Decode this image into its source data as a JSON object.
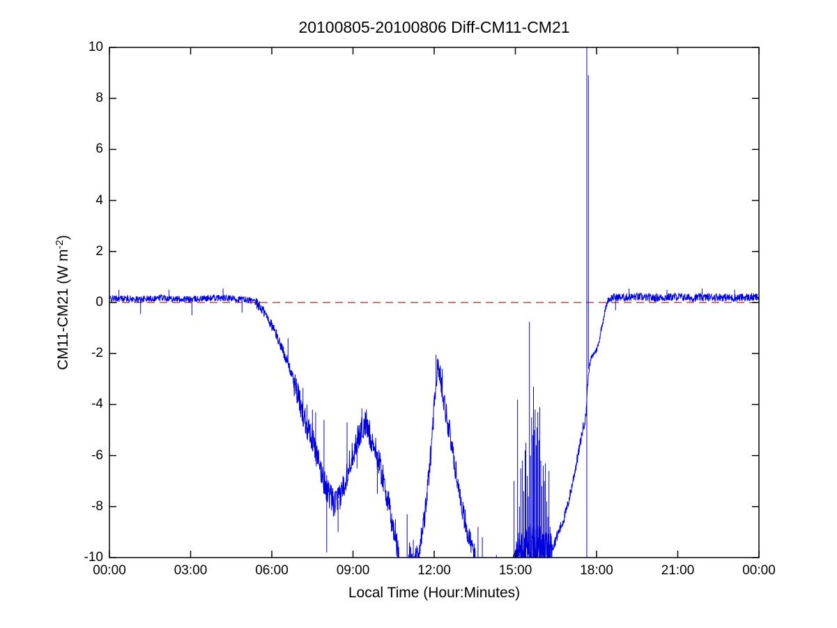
{
  "figure": {
    "background": "#ffffff"
  },
  "chart_data": {
    "type": "line",
    "title": "20100805-20100806 Diff-CM11-CM21",
    "xlabel": "Local Time (Hour:Minutes)",
    "ylabel": "CM11-CM21 (W m^-2)",
    "ylabel_parts": {
      "pre": "CM11-CM21 (W m",
      "sup": "-2",
      "post": ")"
    },
    "xlim": [
      0,
      24
    ],
    "ylim": [
      -10,
      10
    ],
    "x_tick_hours": [
      0,
      3,
      6,
      9,
      12,
      15,
      18,
      21,
      24
    ],
    "x_tick_labels": [
      "00:00",
      "03:00",
      "06:00",
      "09:00",
      "12:00",
      "15:00",
      "18:00",
      "21:00",
      "00:00"
    ],
    "y_tick_values": [
      -10,
      -8,
      -6,
      -4,
      -2,
      0,
      2,
      4,
      6,
      8,
      10
    ],
    "y_tick_labels": [
      "-10",
      "-8",
      "-6",
      "-4",
      "-2",
      "0",
      "2",
      "4",
      "6",
      "8",
      "10"
    ],
    "grid": false,
    "legend": "none",
    "axis_color": "#000000",
    "series": [
      {
        "name": "CM11-CM21 difference",
        "color": "#0000dd",
        "style": "solid",
        "description": "Noisy 1-min pyranometer difference trace; flat near +0.2 W/m2 at night, dips to -10 and below during daylight, cloud spikes 15:00-16:20, large +10/-10 spike near 17:40, returns to +0.2 after 18:30.",
        "envelope_points": [
          [
            0,
            0.15
          ],
          [
            0.5,
            0.16
          ],
          [
            1,
            0.12
          ],
          [
            1.5,
            0.15
          ],
          [
            2,
            0.2
          ],
          [
            2.5,
            0.14
          ],
          [
            3,
            0.12
          ],
          [
            3.5,
            0.16
          ],
          [
            4,
            0.18
          ],
          [
            4.5,
            0.15
          ],
          [
            5,
            0.12
          ],
          [
            5.3,
            0.05
          ],
          [
            5.5,
            -0.1
          ],
          [
            5.7,
            -0.35
          ],
          [
            5.9,
            -0.7
          ],
          [
            6.1,
            -1.1
          ],
          [
            6.3,
            -1.6
          ],
          [
            6.5,
            -2.1
          ],
          [
            6.7,
            -2.7
          ],
          [
            6.9,
            -3.4
          ],
          [
            7.1,
            -4.2
          ],
          [
            7.3,
            -4.8
          ],
          [
            7.5,
            -5.3
          ],
          [
            7.7,
            -6.2
          ],
          [
            7.9,
            -6.9
          ],
          [
            8.1,
            -7.5
          ],
          [
            8.3,
            -7.9
          ],
          [
            8.5,
            -7.7
          ],
          [
            8.7,
            -7.0
          ],
          [
            8.9,
            -6.2
          ],
          [
            9.1,
            -5.6
          ],
          [
            9.3,
            -5.0
          ],
          [
            9.45,
            -4.8
          ],
          [
            9.6,
            -5.1
          ],
          [
            9.8,
            -5.7
          ],
          [
            10,
            -6.4
          ],
          [
            10.2,
            -7.3
          ],
          [
            10.4,
            -8.4
          ],
          [
            10.6,
            -9.4
          ],
          [
            10.75,
            -10.3
          ],
          [
            11,
            -10.4
          ],
          [
            11.1,
            -9.7
          ],
          [
            11.2,
            -10.3
          ],
          [
            11.4,
            -9.9
          ],
          [
            11.6,
            -8.8
          ],
          [
            11.8,
            -6.9
          ],
          [
            11.95,
            -4.8
          ],
          [
            12.05,
            -3.2
          ],
          [
            12.15,
            -2.5
          ],
          [
            12.25,
            -3.0
          ],
          [
            12.4,
            -4.1
          ],
          [
            12.6,
            -5.3
          ],
          [
            12.8,
            -6.6
          ],
          [
            13,
            -7.8
          ],
          [
            13.2,
            -8.9
          ],
          [
            13.4,
            -9.7
          ],
          [
            13.6,
            -10.3
          ],
          [
            14,
            -10.6
          ],
          [
            14.5,
            -10.6
          ],
          [
            14.9,
            -10.2
          ],
          [
            15.05,
            -9.8
          ],
          [
            15.3,
            -9.6
          ],
          [
            15.6,
            -9.4
          ],
          [
            15.9,
            -9.5
          ],
          [
            16.1,
            -9.7
          ],
          [
            16.3,
            -9.7
          ],
          [
            16.45,
            -9.4
          ],
          [
            16.6,
            -9.0
          ],
          [
            16.75,
            -8.6
          ],
          [
            16.9,
            -8.1
          ],
          [
            17.05,
            -7.4
          ],
          [
            17.2,
            -6.6
          ],
          [
            17.35,
            -5.8
          ],
          [
            17.5,
            -4.9
          ],
          [
            17.6,
            -4.5
          ],
          [
            17.66,
            -3.4
          ],
          [
            17.72,
            -2.6
          ],
          [
            17.8,
            -2.2
          ],
          [
            17.9,
            -2.0
          ],
          [
            18,
            -1.85
          ],
          [
            18.08,
            -1.6
          ],
          [
            18.16,
            -1.1
          ],
          [
            18.24,
            -0.7
          ],
          [
            18.32,
            -0.3
          ],
          [
            18.42,
            0.1
          ],
          [
            18.6,
            0.2
          ],
          [
            19,
            0.2
          ],
          [
            19.5,
            0.22
          ],
          [
            20,
            0.18
          ],
          [
            20.5,
            0.2
          ],
          [
            21,
            0.22
          ],
          [
            21.5,
            0.18
          ],
          [
            22,
            0.2
          ],
          [
            22.5,
            0.22
          ],
          [
            23,
            0.18
          ],
          [
            23.5,
            0.2
          ],
          [
            24,
            0.2
          ]
        ],
        "noise_segments": [
          [
            0,
            5.4,
            0.13
          ],
          [
            5.4,
            6.8,
            0.22
          ],
          [
            6.8,
            10.7,
            0.55
          ],
          [
            10.7,
            11.6,
            0.45
          ],
          [
            11.6,
            13.6,
            0.5
          ],
          [
            13.6,
            15.0,
            0.25
          ],
          [
            15.0,
            16.35,
            0.85
          ],
          [
            16.35,
            17.62,
            0.22
          ],
          [
            17.62,
            18.45,
            0.12
          ],
          [
            18.45,
            24,
            0.16
          ]
        ],
        "spikes": [
          [
            0.35,
            0.5
          ],
          [
            1.15,
            -0.45
          ],
          [
            2.2,
            0.5
          ],
          [
            3.05,
            -0.5
          ],
          [
            4.2,
            0.55
          ],
          [
            4.9,
            -0.4
          ],
          [
            6.6,
            -1.4
          ],
          [
            7.15,
            -3.35
          ],
          [
            7.3,
            -4.0
          ],
          [
            7.5,
            -4.2
          ],
          [
            7.62,
            -4.3
          ],
          [
            7.93,
            -4.6
          ],
          [
            8.03,
            -9.8
          ],
          [
            8.45,
            -9.0
          ],
          [
            8.78,
            -4.7
          ],
          [
            9.15,
            -6.5
          ],
          [
            9.33,
            -4.15
          ],
          [
            9.5,
            -4.2
          ],
          [
            9.9,
            -7.5
          ],
          [
            10.57,
            -8.5
          ],
          [
            11.0,
            -8.3
          ],
          [
            11.23,
            -9.3
          ],
          [
            12.07,
            -2.05
          ],
          [
            12.13,
            -2.2
          ],
          [
            12.3,
            -2.6
          ],
          [
            13.62,
            -8.8
          ],
          [
            13.78,
            -9.2
          ],
          [
            14.3,
            -9.9
          ],
          [
            14.95,
            -7.0
          ],
          [
            15.08,
            -3.8,
            -10.45
          ],
          [
            15.15,
            -8.0,
            -10.45
          ],
          [
            15.2,
            -6.5,
            -10.45
          ],
          [
            15.26,
            -6.2,
            -10.45
          ],
          [
            15.31,
            -7.4,
            -10.45
          ],
          [
            15.36,
            -5.8,
            -10.45
          ],
          [
            15.39,
            -5.5,
            -10.45
          ],
          [
            15.44,
            -6.8,
            -10.45
          ],
          [
            15.48,
            -7.6,
            -10.45
          ],
          [
            15.52,
            -0.76,
            -10.45
          ],
          [
            15.56,
            -6.0,
            -10.45
          ],
          [
            15.6,
            -4.5,
            -10.45
          ],
          [
            15.64,
            -5.2,
            -10.45
          ],
          [
            15.67,
            -3.3,
            -10.45
          ],
          [
            15.7,
            -5.0,
            -10.45
          ],
          [
            15.73,
            -4.2,
            -10.45
          ],
          [
            15.77,
            -5.6,
            -10.45
          ],
          [
            15.8,
            -4.9,
            -10.45
          ],
          [
            15.83,
            -4.3,
            -10.45
          ],
          [
            15.87,
            -5.4,
            -10.45
          ],
          [
            15.9,
            -4.1,
            -10.45
          ],
          [
            15.94,
            -6.2,
            -10.45
          ],
          [
            15.98,
            -7.2,
            -10.45
          ],
          [
            16.03,
            -6.4,
            -10.45
          ],
          [
            16.07,
            -7.0,
            -10.45
          ],
          [
            16.11,
            -6.3,
            -10.45
          ],
          [
            16.16,
            -7.8,
            -10.45
          ],
          [
            16.2,
            -8.4,
            -10.45
          ],
          [
            16.24,
            -6.6,
            -10.45
          ],
          [
            16.28,
            -8.8,
            -10.45
          ],
          [
            17.64,
            10.05,
            -10.45
          ],
          [
            17.7,
            8.9,
            -2.6
          ],
          [
            18.7,
            -0.3
          ],
          [
            19.2,
            0.55
          ],
          [
            20.6,
            0.5
          ],
          [
            21.9,
            0.55
          ],
          [
            23.1,
            0.5
          ]
        ]
      },
      {
        "name": "zero reference line",
        "color": "#bb2222",
        "style": "dashed",
        "y": 0
      }
    ]
  }
}
